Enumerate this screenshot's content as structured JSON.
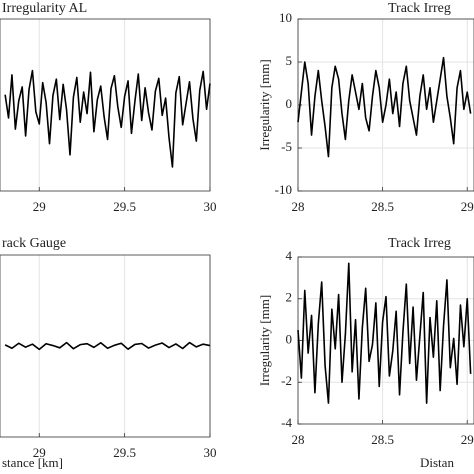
{
  "chart_data": [
    {
      "type": "line",
      "title": "Irregularity AL",
      "x": [
        28.8,
        28.82,
        28.84,
        28.86,
        28.88,
        28.9,
        28.92,
        28.94,
        28.96,
        28.98,
        29.0,
        29.02,
        29.04,
        29.06,
        29.08,
        29.1,
        29.12,
        29.14,
        29.16,
        29.18,
        29.2,
        29.22,
        29.24,
        29.26,
        29.28,
        29.3,
        29.32,
        29.34,
        29.36,
        29.38,
        29.4,
        29.42,
        29.44,
        29.46,
        29.48,
        29.5,
        29.52,
        29.54,
        29.56,
        29.58,
        29.6,
        29.62,
        29.64,
        29.66,
        29.68,
        29.7,
        29.72,
        29.74,
        29.76,
        29.78,
        29.8,
        29.82,
        29.84,
        29.86,
        29.88,
        29.9,
        29.92,
        29.94,
        29.96,
        29.98,
        30.0
      ],
      "series": [
        {
          "color": "#000000",
          "values": [
            1.2,
            -1.5,
            3.5,
            -2.8,
            0.5,
            2.1,
            -3.6,
            1.8,
            4.0,
            -0.8,
            -2.2,
            2.6,
            0.3,
            -4.5,
            1.1,
            3.0,
            -1.7,
            2.4,
            -0.6,
            -5.8,
            0.9,
            3.2,
            -2.0,
            1.5,
            -1.0,
            3.8,
            -3.1,
            0.6,
            2.2,
            -1.4,
            -4.0,
            1.9,
            3.4,
            -0.2,
            -2.6,
            1.0,
            2.8,
            -3.3,
            0.4,
            3.6,
            -1.8,
            2.0,
            -0.9,
            -2.9,
            1.6,
            3.1,
            -1.2,
            0.8,
            -3.8,
            -7.2,
            1.4,
            3.3,
            -2.3,
            0.2,
            2.7,
            -1.6,
            -4.2,
            1.7,
            3.9,
            -0.5,
            2.5
          ]
        }
      ],
      "xlim": [
        28.77,
        30
      ],
      "ylim": [
        -10,
        10
      ],
      "xticks": [
        29,
        29.5,
        30
      ],
      "grid": true
    },
    {
      "type": "line",
      "title": "Track Irreg",
      "ylabel": "Irregularity [mm]",
      "x": [
        28.0,
        28.02,
        28.04,
        28.06,
        28.08,
        28.1,
        28.12,
        28.14,
        28.16,
        28.18,
        28.2,
        28.22,
        28.24,
        28.26,
        28.28,
        28.3,
        28.32,
        28.34,
        28.36,
        28.38,
        28.4,
        28.42,
        28.44,
        28.46,
        28.48,
        28.5,
        28.52,
        28.54,
        28.56,
        28.58,
        28.6,
        28.62,
        28.64,
        28.66,
        28.68,
        28.7,
        28.72,
        28.74,
        28.76,
        28.78,
        28.8,
        28.82,
        28.84,
        28.86,
        28.88,
        28.9,
        28.92,
        28.94,
        28.96,
        28.98,
        29.0,
        29.02
      ],
      "series": [
        {
          "color": "#000000",
          "values": [
            -2.0,
            1.5,
            5.0,
            2.5,
            -3.5,
            1.0,
            4.0,
            0.5,
            -2.5,
            -6.0,
            2.0,
            4.5,
            3.0,
            -1.0,
            -4.0,
            0.5,
            3.5,
            1.5,
            -0.5,
            2.5,
            -1.5,
            -3.0,
            1.0,
            4.0,
            2.0,
            -2.0,
            0.0,
            3.0,
            -1.0,
            1.5,
            -2.5,
            2.5,
            4.5,
            0.5,
            -1.5,
            -3.5,
            1.0,
            3.5,
            -0.5,
            2.0,
            -2.0,
            0.5,
            3.0,
            5.5,
            1.0,
            -1.5,
            -4.5,
            2.0,
            4.0,
            -0.5,
            1.5,
            -1.0
          ]
        }
      ],
      "xlim": [
        28,
        29.04
      ],
      "ylim": [
        -10,
        10
      ],
      "xticks": [
        28,
        28.5,
        29
      ],
      "yticks": [
        -10,
        -5,
        0,
        5,
        10
      ],
      "grid": true
    },
    {
      "type": "line",
      "title": "rack Gauge",
      "xlabel": "stance [km]",
      "x": [
        28.8,
        28.84,
        28.88,
        28.92,
        28.96,
        29.0,
        29.04,
        29.08,
        29.12,
        29.16,
        29.2,
        29.24,
        29.28,
        29.32,
        29.36,
        29.4,
        29.44,
        29.48,
        29.52,
        29.56,
        29.6,
        29.64,
        29.68,
        29.72,
        29.76,
        29.8,
        29.84,
        29.88,
        29.92,
        29.96,
        30.0
      ],
      "series": [
        {
          "color": "#000000",
          "values": [
            0.05,
            -0.1,
            0.12,
            -0.05,
            0.08,
            -0.15,
            0.1,
            0.02,
            -0.08,
            0.15,
            -0.12,
            0.06,
            0.1,
            -0.06,
            0.14,
            -0.1,
            0.03,
            0.12,
            -0.14,
            0.07,
            0.11,
            -0.09,
            0.04,
            0.13,
            -0.07,
            0.09,
            -0.11,
            0.15,
            -0.04,
            0.08,
            0.02
          ]
        }
      ],
      "xlim": [
        28.77,
        30
      ],
      "ylim": [
        -4,
        4
      ],
      "xticks": [
        29,
        29.5,
        30
      ],
      "grid": true
    },
    {
      "type": "line",
      "title": "Track Irreg",
      "ylabel": "Irregularity [mm]",
      "xlabel": "Distan",
      "x": [
        28.0,
        28.02,
        28.04,
        28.06,
        28.08,
        28.1,
        28.12,
        28.14,
        28.16,
        28.18,
        28.2,
        28.22,
        28.24,
        28.26,
        28.28,
        28.3,
        28.32,
        28.34,
        28.36,
        28.38,
        28.4,
        28.42,
        28.44,
        28.46,
        28.48,
        28.5,
        28.52,
        28.54,
        28.56,
        28.58,
        28.6,
        28.62,
        28.64,
        28.66,
        28.68,
        28.7,
        28.72,
        28.74,
        28.76,
        28.78,
        28.8,
        28.82,
        28.84,
        28.86,
        28.88,
        28.9,
        28.92,
        28.94,
        28.96,
        28.98,
        29.0,
        29.02
      ],
      "series": [
        {
          "color": "#000000",
          "values": [
            0.5,
            -1.8,
            2.4,
            -0.6,
            1.2,
            -2.5,
            0.8,
            2.8,
            -1.2,
            -3.0,
            1.5,
            -0.4,
            2.2,
            -2.0,
            0.3,
            3.7,
            -1.5,
            1.0,
            -2.8,
            0.6,
            2.5,
            -1.0,
            -0.2,
            1.8,
            -2.2,
            0.9,
            2.1,
            -1.7,
            -0.5,
            1.4,
            -2.6,
            0.4,
            2.7,
            -1.1,
            1.6,
            -1.9,
            0.2,
            2.3,
            -3.0,
            1.1,
            -0.8,
            1.9,
            -2.4,
            0.7,
            2.9,
            -1.3,
            0.1,
            -2.1,
            1.7,
            -0.3,
            2.0,
            -1.6
          ]
        }
      ],
      "xlim": [
        28,
        29.04
      ],
      "ylim": [
        -4,
        4
      ],
      "xticks": [
        28,
        28.5,
        29
      ],
      "yticks": [
        -4,
        -2,
        0,
        2,
        4
      ],
      "grid": true
    }
  ]
}
